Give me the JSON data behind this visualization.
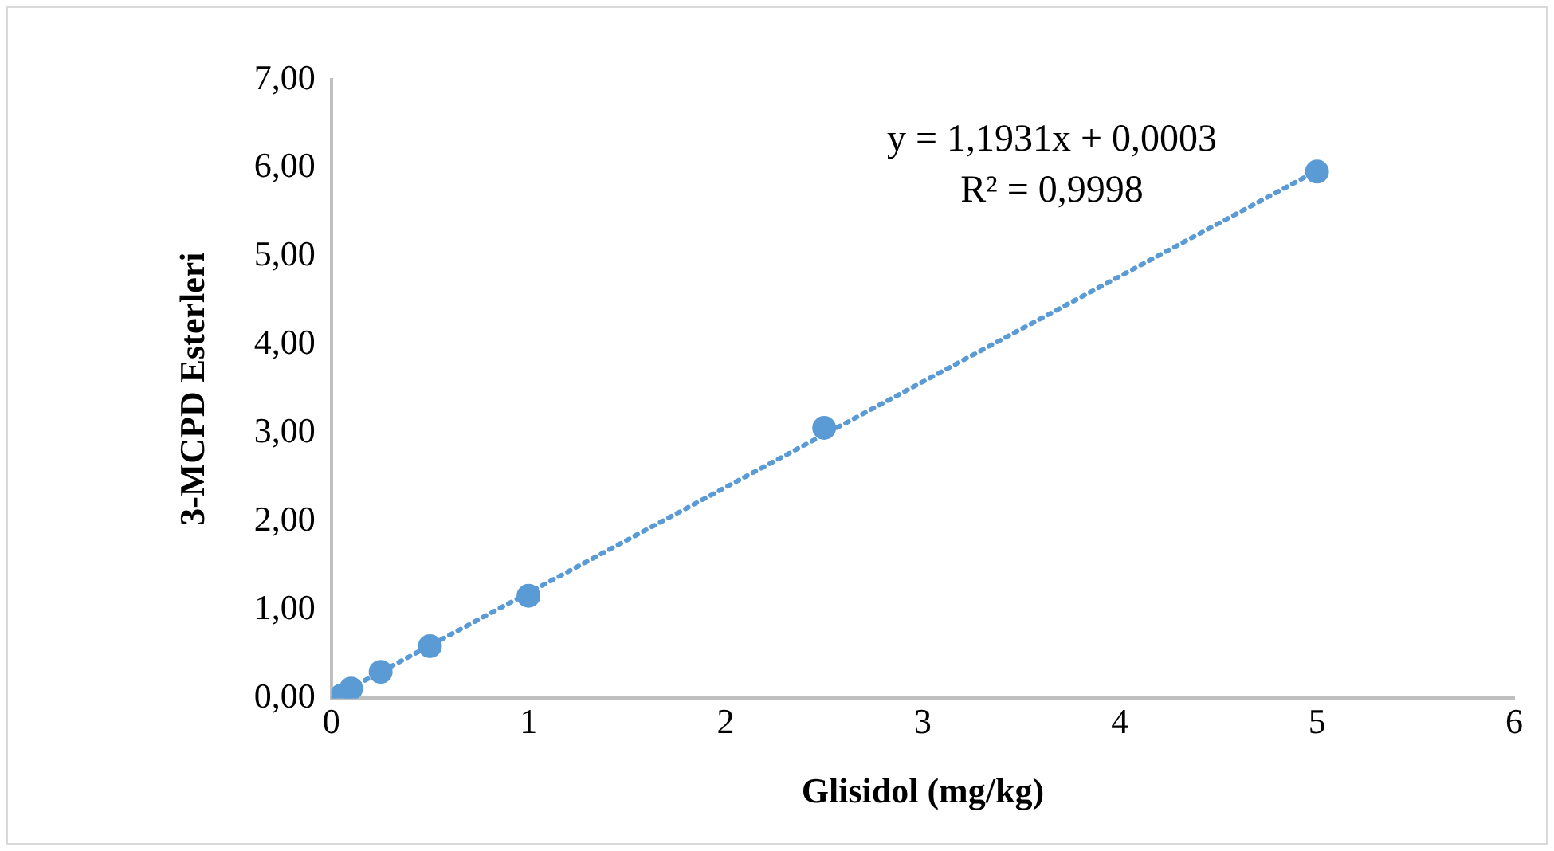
{
  "chart_data": {
    "type": "scatter",
    "xlabel": "Glisidol (mg/kg)",
    "ylabel": "3-MCPD Esterleri",
    "series": [
      {
        "color": "#5b9bd5",
        "x": [
          0.05,
          0.1,
          0.25,
          0.5,
          1,
          2.5,
          5
        ],
        "values": [
          0.03,
          0.11,
          0.3,
          0.59,
          1.16,
          3.06,
          5.96
        ]
      },
      {
        "type": "line",
        "color": "#5b9bd5",
        "line_style": "dotted",
        "marker": "none",
        "x": [
          0,
          5
        ],
        "values": [
          0,
          5.97
        ]
      }
    ],
    "annotations": [
      "y = 1,1931x + 0,0003",
      "R² = 0,9998"
    ],
    "xlim": [
      0,
      6
    ],
    "xticks": [
      0,
      1,
      2,
      3,
      4,
      5,
      6
    ],
    "ylim": [
      0,
      7
    ],
    "yticks": [
      {
        "value": 0,
        "label": "0,00"
      },
      {
        "value": 1,
        "label": "1,00"
      },
      {
        "value": 2,
        "label": "2,00"
      },
      {
        "value": 3,
        "label": "3,00"
      },
      {
        "value": 4,
        "label": "4,00"
      },
      {
        "value": 5,
        "label": "5,00"
      },
      {
        "value": 6,
        "label": "6,00"
      },
      {
        "value": 7,
        "label": "7,00"
      }
    ],
    "grid": false,
    "legend": false,
    "marker": "circle"
  }
}
